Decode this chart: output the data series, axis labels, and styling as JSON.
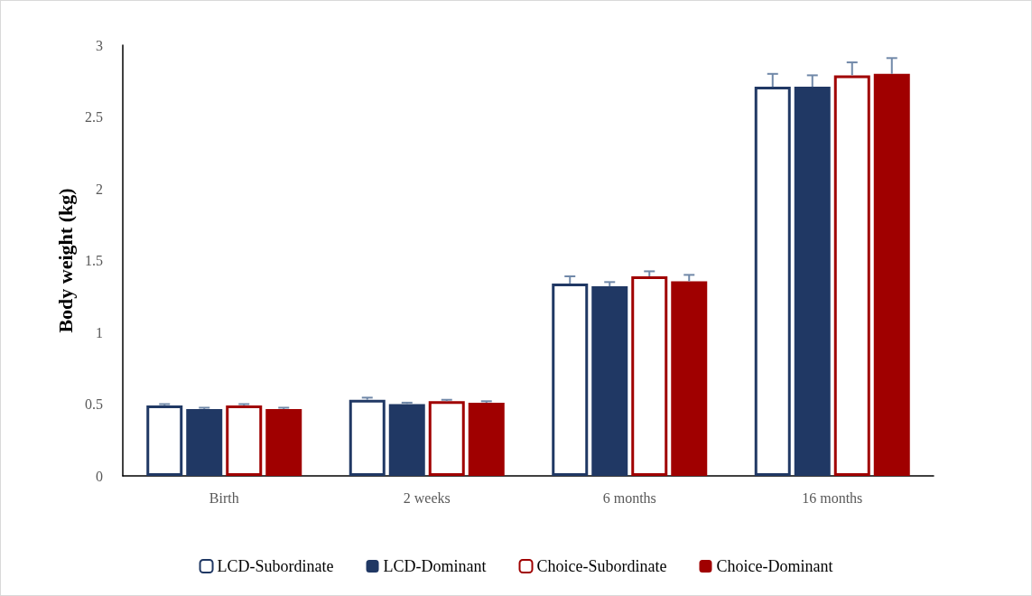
{
  "chart_data": {
    "type": "bar",
    "ylabel": "Body weight (kg)",
    "categories": [
      "Birth",
      "2 weeks",
      "6 months",
      "16 months"
    ],
    "series": [
      {
        "name": "LCD-Subordinate",
        "color": "#203864",
        "line_style": "solid",
        "values": [
          0.49,
          0.53,
          1.34,
          2.71
        ],
        "errors": [
          [
            0.49,
            0.5
          ],
          [
            0.53,
            0.545
          ],
          [
            1.34,
            1.39
          ],
          [
            2.71,
            2.8
          ]
        ]
      },
      {
        "name": "LCD-Dominant",
        "color": "#203864",
        "values": [
          0.465,
          0.5,
          1.32,
          2.71
        ],
        "errors": [
          [
            0.465,
            0.475
          ],
          [
            0.5,
            0.51
          ],
          [
            1.32,
            1.35
          ],
          [
            2.71,
            2.79
          ]
        ]
      },
      {
        "name": "Choice-Subordinate",
        "color": "#a00000",
        "line_style": "solid",
        "values": [
          0.49,
          0.52,
          1.39,
          2.79
        ],
        "errors": [
          [
            0.49,
            0.5
          ],
          [
            0.52,
            0.53
          ],
          [
            1.39,
            1.425
          ],
          [
            2.79,
            2.88
          ]
        ]
      },
      {
        "name": "Choice-Dominant",
        "color": "#a00000",
        "values": [
          0.465,
          0.51,
          1.355,
          2.8
        ],
        "errors": [
          [
            0.465,
            0.475
          ],
          [
            0.51,
            0.52
          ],
          [
            1.355,
            1.4
          ],
          [
            2.8,
            2.91
          ]
        ]
      }
    ],
    "ylim": [
      0,
      3
    ],
    "yticks": [
      0,
      0.5,
      1,
      1.5,
      2,
      2.5,
      3
    ],
    "grid": false,
    "legend": "bottom"
  }
}
